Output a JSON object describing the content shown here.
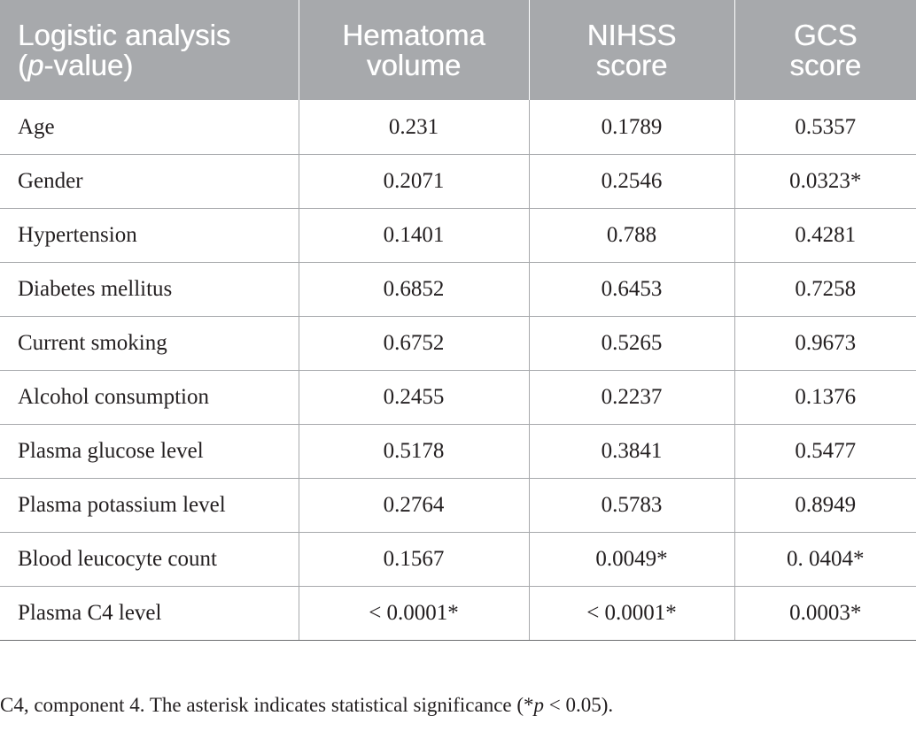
{
  "table": {
    "headers": [
      {
        "line1": "Logistic analysis",
        "line2_pre": "(",
        "line2_italic": "p",
        "line2_post": "-value)"
      },
      {
        "line1": "Hematoma",
        "line2": "volume"
      },
      {
        "line1": "NIHSS",
        "line2": "score"
      },
      {
        "line1": "GCS",
        "line2": "score"
      }
    ],
    "rows": [
      [
        "Age",
        "0.231",
        "0.1789",
        "0.5357"
      ],
      [
        "Gender",
        "0.2071",
        "0.2546",
        "0.0323*"
      ],
      [
        "Hypertension",
        "0.1401",
        "0.788",
        "0.4281"
      ],
      [
        "Diabetes mellitus",
        "0.6852",
        "0.6453",
        "0.7258"
      ],
      [
        "Current smoking",
        "0.6752",
        "0.5265",
        "0.9673"
      ],
      [
        "Alcohol consumption",
        "0.2455",
        "0.2237",
        "0.1376"
      ],
      [
        "Plasma glucose level",
        "0.5178",
        "0.3841",
        "0.5477"
      ],
      [
        "Plasma potassium level",
        "0.2764",
        "0.5783",
        "0.8949"
      ],
      [
        "Blood leucocyte count",
        "0.1567",
        "0.0049*",
        "0. 0404*"
      ],
      [
        "Plasma C4 level",
        "< 0.0001*",
        "< 0.0001*",
        "0.0003*"
      ]
    ]
  },
  "footnote": {
    "pre": "C4, component 4. The asterisk indicates statistical significance (*",
    "italic": "p",
    "post": " < 0.05)."
  },
  "colors": {
    "header_bg": "#a7a9ac",
    "header_text": "#ffffff",
    "body_text": "#231f20",
    "rule": "#a7a9ac"
  }
}
